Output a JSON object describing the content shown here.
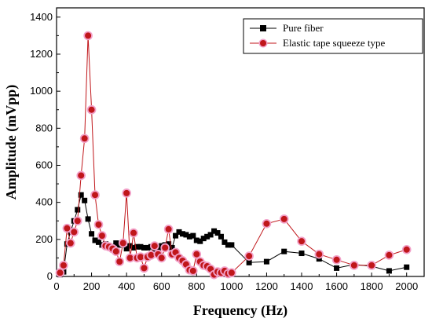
{
  "chart_data": {
    "type": "line",
    "xlabel": "Frequency (Hz)",
    "ylabel": "Amplitude (mVpp)",
    "xlim": [
      0,
      2100
    ],
    "ylim": [
      0,
      1450
    ],
    "xticks": [
      "0",
      "200",
      "400",
      "600",
      "800",
      "1000",
      "1200",
      "1400",
      "1600",
      "1800",
      "2000"
    ],
    "yticks": [
      "0",
      "200",
      "400",
      "600",
      "800",
      "1000",
      "1200",
      "1400"
    ],
    "grid": false,
    "legend_position": "top-right",
    "series": [
      {
        "name": "Pure fiber",
        "marker": "square",
        "color": "#000000",
        "line_color": "#000000",
        "x": [
          20,
          40,
          60,
          80,
          100,
          120,
          140,
          160,
          180,
          200,
          220,
          240,
          260,
          280,
          300,
          320,
          340,
          360,
          380,
          400,
          420,
          440,
          460,
          480,
          500,
          520,
          540,
          560,
          580,
          600,
          620,
          640,
          660,
          680,
          700,
          720,
          740,
          760,
          780,
          800,
          820,
          840,
          860,
          880,
          900,
          920,
          940,
          960,
          980,
          1000,
          1100,
          1200,
          1300,
          1400,
          1500,
          1600,
          1700,
          1800,
          1900,
          2000
        ],
        "y": [
          10,
          25,
          175,
          240,
          300,
          360,
          440,
          410,
          310,
          230,
          195,
          185,
          170,
          175,
          165,
          160,
          180,
          170,
          170,
          150,
          165,
          155,
          160,
          160,
          155,
          155,
          160,
          145,
          150,
          165,
          170,
          175,
          155,
          220,
          240,
          230,
          225,
          215,
          220,
          195,
          190,
          205,
          215,
          225,
          245,
          235,
          215,
          185,
          170,
          170,
          75,
          80,
          135,
          125,
          95,
          45,
          65,
          55,
          30,
          50
        ]
      },
      {
        "name": "Elastic tape squeeze type",
        "marker": "circle",
        "color": "#c0161a",
        "line_color": "#c0161a",
        "halo_color": "#f2a0c8",
        "x": [
          20,
          40,
          60,
          80,
          100,
          120,
          140,
          160,
          180,
          200,
          220,
          240,
          260,
          280,
          300,
          320,
          340,
          360,
          380,
          400,
          420,
          440,
          460,
          480,
          500,
          520,
          540,
          560,
          580,
          600,
          620,
          640,
          660,
          680,
          700,
          720,
          740,
          760,
          780,
          800,
          820,
          840,
          860,
          880,
          900,
          920,
          940,
          960,
          980,
          1000,
          1100,
          1200,
          1300,
          1400,
          1500,
          1600,
          1700,
          1800,
          1900,
          2000
        ],
        "y": [
          20,
          60,
          260,
          180,
          240,
          300,
          545,
          745,
          1300,
          900,
          440,
          280,
          220,
          165,
          160,
          150,
          135,
          80,
          180,
          450,
          100,
          235,
          100,
          105,
          45,
          105,
          115,
          165,
          120,
          100,
          155,
          255,
          120,
          130,
          100,
          85,
          65,
          35,
          30,
          120,
          80,
          60,
          55,
          40,
          10,
          25,
          20,
          30,
          15,
          20,
          110,
          285,
          310,
          190,
          120,
          90,
          60,
          60,
          115,
          145
        ]
      }
    ]
  }
}
